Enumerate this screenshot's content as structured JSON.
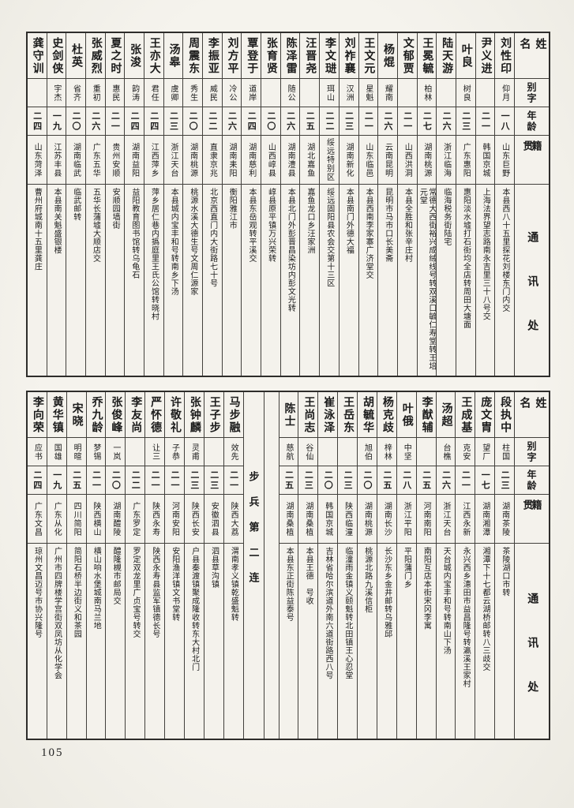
{
  "page_number": "105",
  "headers": {
    "name": "姓名",
    "courtesy_name": "别字",
    "age": "年龄",
    "native_place": "籍贯",
    "address": "通讯处"
  },
  "top_table": {
    "column_order": "right-to-left",
    "entries": [
      {
        "name": "刘性印",
        "courtesy": "仰月",
        "age": "一八",
        "origin": "山东巨野",
        "address": "本县西八十五里探花刘楼东门内交"
      },
      {
        "name": "尹义进",
        "courtesy": "",
        "age": "二一",
        "origin": "韩国京城",
        "address": "上海法界望志路南永吉里三十八号交"
      },
      {
        "name": "叶良",
        "courtesy": "树良",
        "age": "二三",
        "origin": "广东惠阳",
        "address": "惠阳淡水墟打石街均全店转周田大塘面"
      },
      {
        "name": "陆天游",
        "courtesy": "",
        "age": "二六",
        "origin": "浙江临海",
        "address": "临海税务街陆宅"
      },
      {
        "name": "王冕毓",
        "courtesy": "柏林",
        "age": "二七",
        "origin": "湖南桃源",
        "address": "常德大西街裕兴成绒线号转双溪口毓仁寿堂转王培元堂"
      },
      {
        "name": "文郁贾",
        "courtesy": "",
        "age": "二一",
        "origin": "山西洪洞",
        "address": "本县全胜和张辛庄村"
      },
      {
        "name": "杨焜",
        "courtesy": "耀南",
        "age": "二六",
        "origin": "云南昆明",
        "address": "昆明市马市口长美斋"
      },
      {
        "name": "王文元",
        "courtesy": "星魁",
        "age": "二一",
        "origin": "山东临邑",
        "address": "本县西南李家寨广济堂交"
      },
      {
        "name": "刘祚襄",
        "courtesy": "汉洲",
        "age": "二三",
        "origin": "湖南新化",
        "address": "本县南门外德大福"
      },
      {
        "name": "李文琎",
        "courtesy": "珥山",
        "age": "二二",
        "origin": "绥远特别区",
        "address": "绥远固阳县农会交第十三区"
      },
      {
        "name": "汪晋尧",
        "courtesy": "",
        "age": "二五",
        "origin": "湖北嘉鱼",
        "address": "嘉鱼龙口乡汪家洲"
      },
      {
        "name": "陈泽雷",
        "courtesy": "随公",
        "age": "二六",
        "origin": "湖南澧县",
        "address": "本县北门外彭晋昌染坊内彭文光转"
      },
      {
        "name": "张育贤",
        "courtesy": "",
        "age": "二〇",
        "origin": "山西崞县",
        "address": "崞县原平镇万兴荣转"
      },
      {
        "name": "覃登于",
        "courtesy": "道岸",
        "age": "二四",
        "origin": "湖南慈利",
        "address": "本县东岳观转平溪交"
      },
      {
        "name": "刘方平",
        "courtesy": "冷公",
        "age": "二六",
        "origin": "湖南耒阳",
        "address": "衡阳雅江市"
      },
      {
        "name": "李振亚",
        "courtesy": "威民",
        "age": "二二",
        "origin": "直隶京兆",
        "address": "北京西直门内大街路七十号"
      },
      {
        "name": "周震东",
        "courtesy": "秀生",
        "age": "二〇",
        "origin": "湖南桃源",
        "address": "桃源水溪大德生号文周仁源家"
      },
      {
        "name": "汤皋",
        "courtesy": "虞卿",
        "age": "二三",
        "origin": "浙江天台",
        "address": "本县城内宝丰和号转南乡下汤"
      },
      {
        "name": "王亦大",
        "courtesy": "君任",
        "age": "二四",
        "origin": "江西萍乡",
        "address": "萍乡居仁巷内撝庭里王氏公馆转晓村"
      },
      {
        "name": "张浚",
        "courtesy": "韵涛",
        "age": "二四",
        "origin": "湖南益阳",
        "address": "益阳教育图书馆转乌龟石"
      },
      {
        "name": "夏之时",
        "courtesy": "惠民",
        "age": "二一",
        "origin": "贵州安顺",
        "address": "安顺园墙街"
      },
      {
        "name": "张威烈",
        "courtesy": "重初",
        "age": "二六",
        "origin": "广东五华",
        "address": "五华长蒲墟大顺店交"
      },
      {
        "name": "杜英",
        "courtesy": "省齐",
        "age": "二〇",
        "origin": "湖南临武",
        "address": "临武邮转"
      },
      {
        "name": "史剑侠",
        "courtesy": "宇杰",
        "age": "一九",
        "origin": "江苏丰县",
        "address": "本县南关魁盛银楼"
      },
      {
        "name": "龚守训",
        "courtesy": "",
        "age": "二四",
        "origin": "山东菏泽",
        "address": "曹州府城南十五里龚庄"
      }
    ]
  },
  "bottom_table": {
    "column_order": "right-to-left",
    "company_divider_label": "步兵第二连",
    "entries_right_of_divider": [
      {
        "name": "段执中",
        "courtesy": "柱国",
        "age": "二三",
        "origin": "湖南茶陵",
        "address": "茶陵湖口市转"
      },
      {
        "name": "庞文胄",
        "courtesy": "望厂",
        "age": "一七",
        "origin": "湖南湘潭",
        "address": "湘潭下十七都云湖桥邮转八三歧交"
      },
      {
        "name": "王成基",
        "courtesy": "克安",
        "age": "二一",
        "origin": "江西永新",
        "address": "永兴西乡潓田市益昌隆号转瀛溪王家村"
      },
      {
        "name": "汤超",
        "courtesy": "台樵",
        "age": "二六",
        "origin": "浙江天台",
        "address": "天台城内宝丰和号转南山下汤"
      },
      {
        "name": "李猷辅",
        "courtesy": "",
        "age": "二五",
        "origin": "河南南阳",
        "address": "南阳互店本街宋冈李寓"
      },
      {
        "name": "叶俄",
        "courtesy": "中坚",
        "age": "二八",
        "origin": "浙江平阳",
        "address": "平阳蒲门乡"
      },
      {
        "name": "杨克歧",
        "courtesy": "梓林",
        "age": "二五",
        "origin": "湖南长沙",
        "address": "长沙东乡金井邮转乌雅邱"
      },
      {
        "name": "胡毓华",
        "courtesy": "旭伯",
        "age": "二〇",
        "origin": "湖南桃源",
        "address": "桃源北路九溪信柜"
      },
      {
        "name": "王岳东",
        "courtesy": "",
        "age": "二三",
        "origin": "陕西临潼",
        "address": "临潼雨金镇义颐魁转北田镇王心忍堂"
      },
      {
        "name": "崔泳泽",
        "courtesy": "",
        "age": "二〇",
        "origin": "韩国京城",
        "address": "吉林省哈尔滨道外南六道街路西八号"
      },
      {
        "name": "王尚志",
        "courtesy": "谷仙",
        "age": "二三",
        "origin": "湖南桑植",
        "address": "本县王德　号收"
      },
      {
        "name": "陈士",
        "courtesy": "慈航",
        "age": "二五",
        "origin": "湖南桑植",
        "address": "本县东正街陈益泰号"
      }
    ],
    "entries_left_of_divider": [
      {
        "name": "马步融",
        "courtesy": "效先",
        "age": "二一",
        "origin": "陕西大荔",
        "address": "渭南孝义镇乾盛魁转"
      },
      {
        "name": "王子步",
        "courtesy": "",
        "age": "二三",
        "origin": "安徽泗县",
        "address": "泗县草沟镇"
      },
      {
        "name": "张钟麟",
        "courtesy": "灵甫",
        "age": "二三",
        "origin": "陕西长安",
        "address": "户县秦渡镇聚成隆收转东大村北门"
      },
      {
        "name": "许敬礼",
        "courtesy": "子恭",
        "age": "二一",
        "origin": "河南安阳",
        "address": "安阳渔洋镇文书堂转"
      },
      {
        "name": "严怀德",
        "courtesy": "让三",
        "age": "二一",
        "origin": "陕西永寿",
        "address": "陕西永寿县监军镇德长号"
      },
      {
        "name": "李友尚",
        "courtesy": "",
        "age": "二二",
        "origin": "广东罗定",
        "address": "罗定双龙里广贞宝号转交"
      },
      {
        "name": "张俊峰",
        "courtesy": "一岚",
        "age": "二〇",
        "origin": "湖南醴陵",
        "address": "醴隆槻市邮局交"
      },
      {
        "name": "乔九龄",
        "courtesy": "梦锡",
        "age": "二一",
        "origin": "陕西横山",
        "address": "横山响水堡城南马兰地"
      },
      {
        "name": "宋晓",
        "courtesy": "明暄",
        "age": "二五",
        "origin": "四川简阳",
        "address": "简阳石桥半边街义和茶园"
      },
      {
        "name": "黄华镇",
        "courtesy": "国雄",
        "age": "一九",
        "origin": "广东从化",
        "address": "广州市四牌楼学宫街双凤坊从化学会"
      },
      {
        "name": "李向荣",
        "courtesy": "应书",
        "age": "二四",
        "origin": "广东文昌",
        "address": "琼州文昌迈号市协兴隆号"
      }
    ]
  }
}
